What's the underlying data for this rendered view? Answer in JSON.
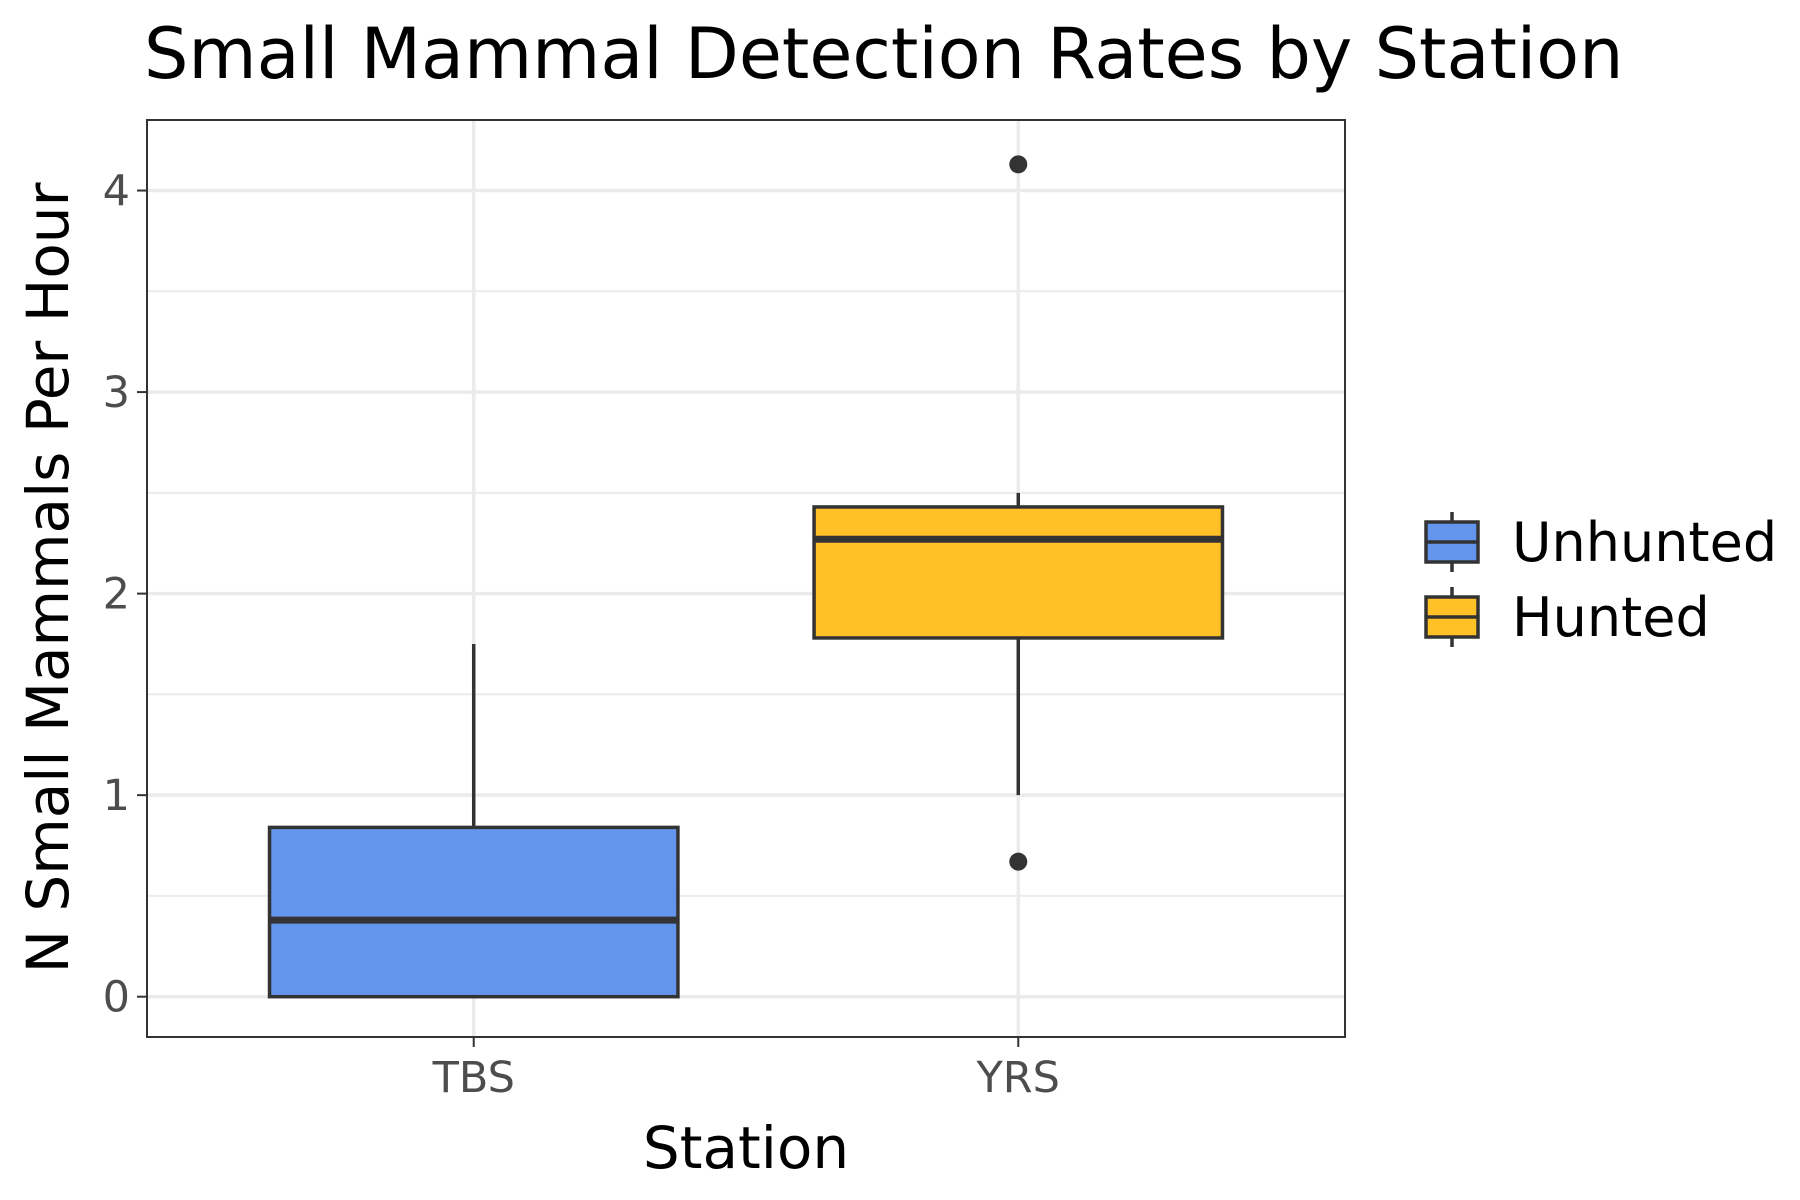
{
  "chart_data": {
    "type": "box",
    "title": "Small Mammal Detection Rates by Station",
    "xlabel": "Station",
    "ylabel": "N Small Mammals Per Hour",
    "categories": [
      "TBS",
      "YRS"
    ],
    "ylim": [
      -0.2,
      4.35
    ],
    "yticks": [
      0,
      1,
      2,
      3,
      4
    ],
    "grid": true,
    "legend_position": "right",
    "series": [
      {
        "name": "Unhunted",
        "category": "TBS",
        "color": "#6495ED",
        "min": 0,
        "q1": 0,
        "median": 0.38,
        "q3": 0.84,
        "max": 1.75,
        "outliers": []
      },
      {
        "name": "Hunted",
        "category": "YRS",
        "color": "#FFC125",
        "min": 1.0,
        "q1": 1.78,
        "median": 2.27,
        "q3": 2.43,
        "max": 2.5,
        "outliers": [
          4.13,
          0.67
        ]
      }
    ],
    "legend": [
      "Unhunted",
      "Hunted"
    ]
  }
}
